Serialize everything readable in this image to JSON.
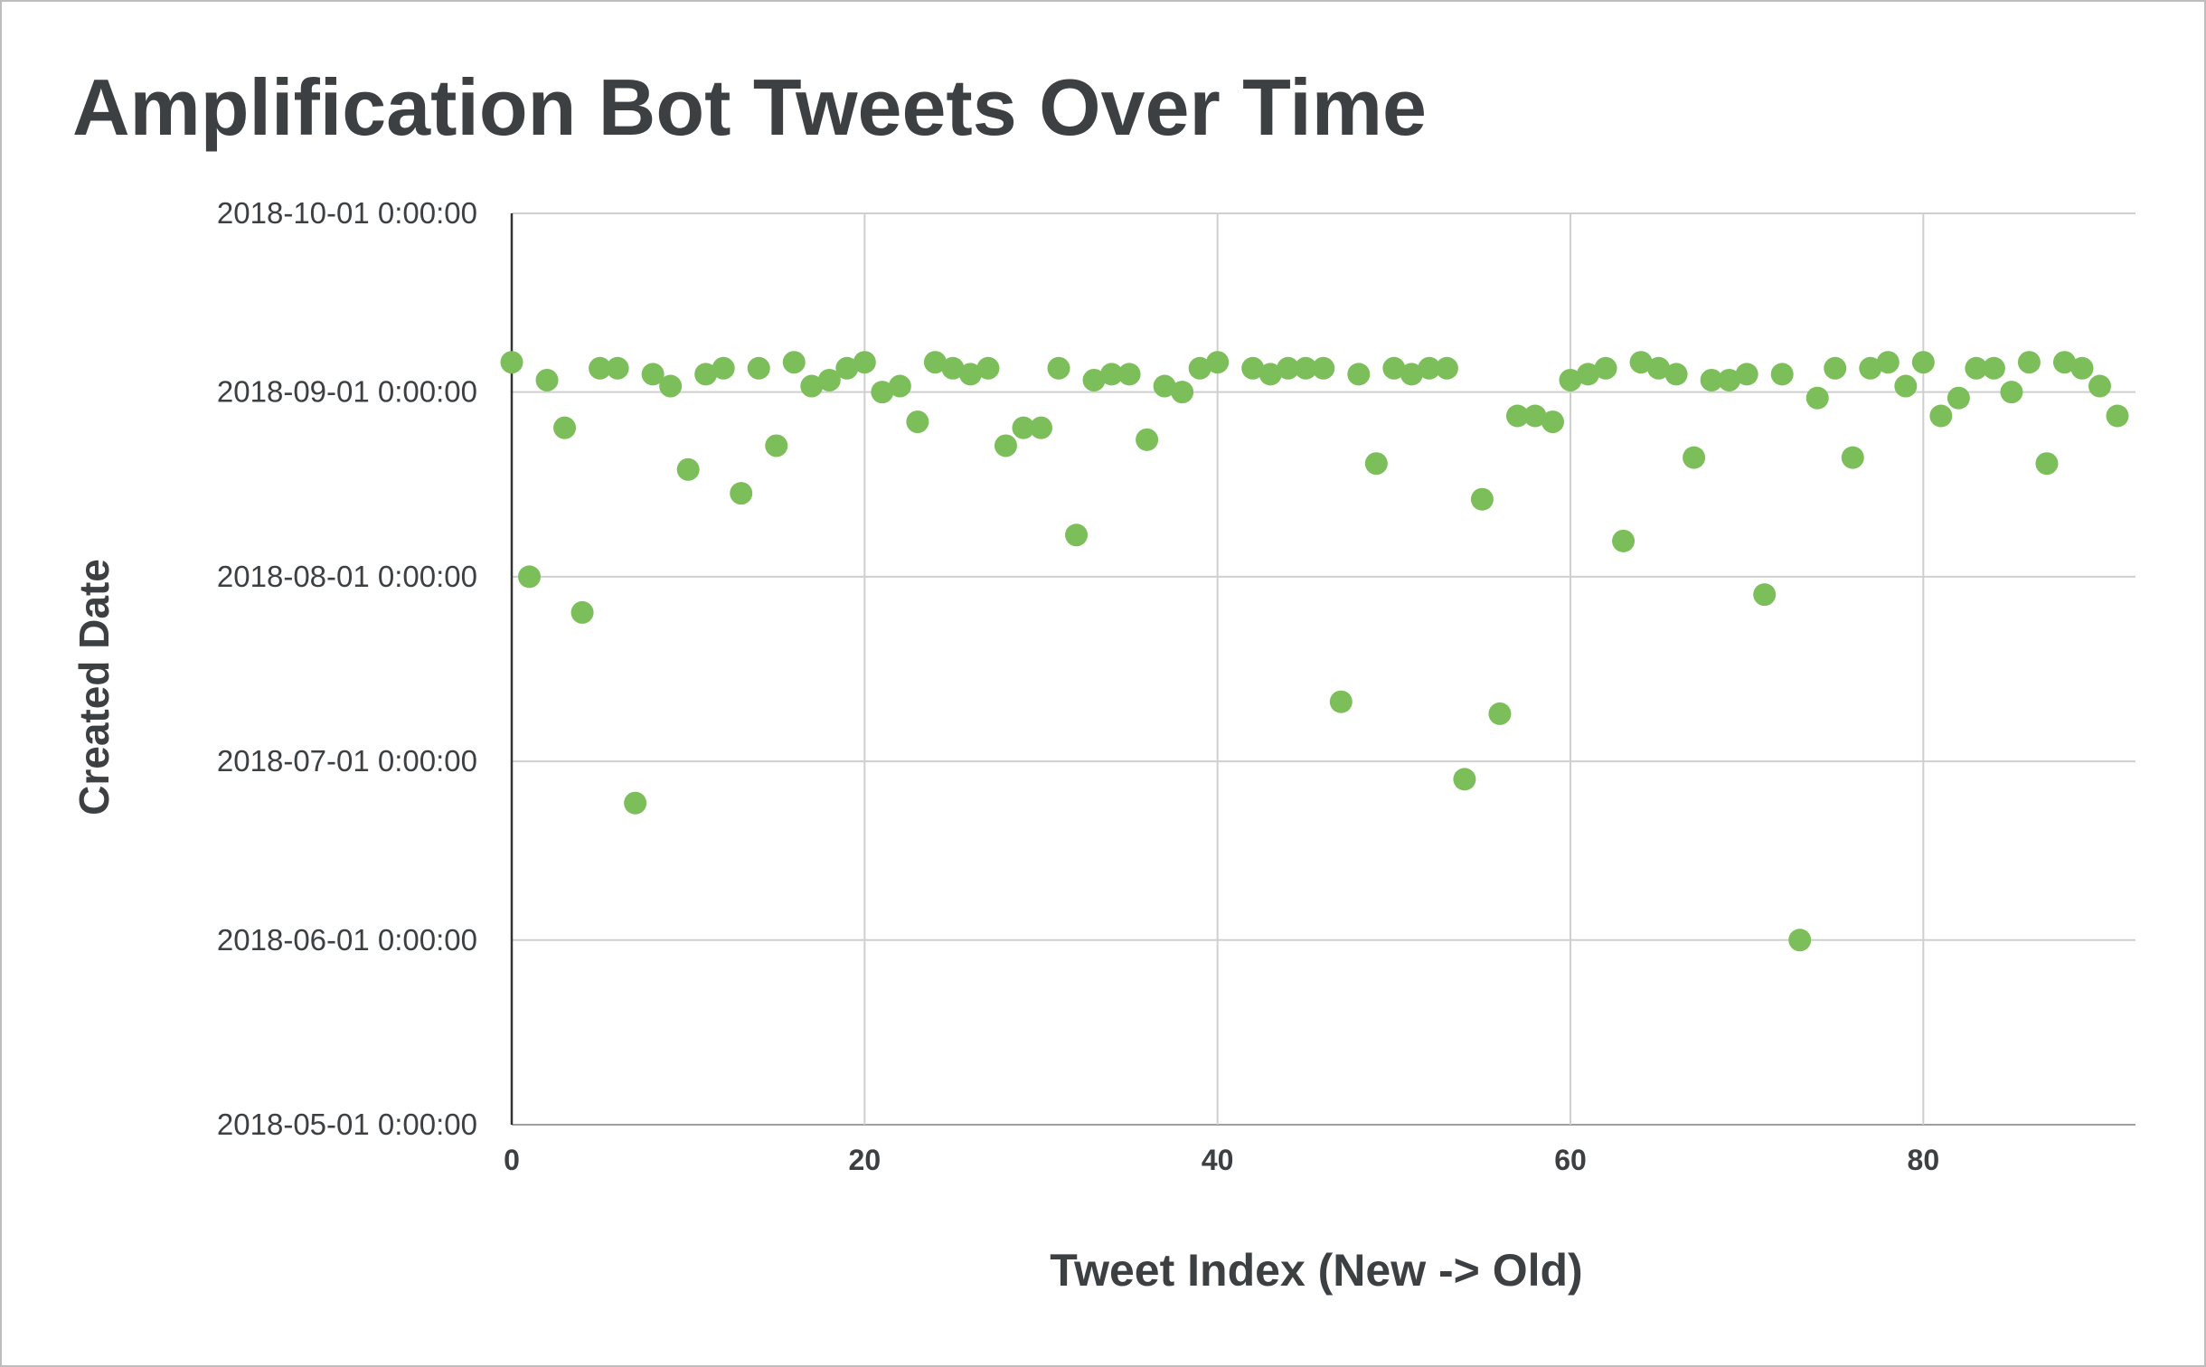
{
  "chart_data": {
    "type": "scatter",
    "title": "Amplification Bot Tweets Over Time",
    "xlabel": "Tweet Index (New -> Old)",
    "ylabel": "Created Date",
    "xlim": [
      0,
      92
    ],
    "ylim": [
      "2018-05-01 0:00:00",
      "2018-10-01 0:00:00"
    ],
    "x_ticks": [
      0,
      20,
      40,
      60,
      80
    ],
    "y_ticks": [
      "2018-05-01 0:00:00",
      "2018-06-01 0:00:00",
      "2018-07-01 0:00:00",
      "2018-08-01 0:00:00",
      "2018-09-01 0:00:00",
      "2018-10-01 0:00:00"
    ],
    "grid": true,
    "legend": "none",
    "color": "#7cbf5a",
    "series": [
      {
        "points": [
          [
            0,
            "2018-09-06"
          ],
          [
            1,
            "2018-08-01"
          ],
          [
            2,
            "2018-09-03"
          ],
          [
            3,
            "2018-08-26"
          ],
          [
            4,
            "2018-07-26"
          ],
          [
            5,
            "2018-09-05"
          ],
          [
            6,
            "2018-09-05"
          ],
          [
            7,
            "2018-06-24"
          ],
          [
            8,
            "2018-09-04"
          ],
          [
            9,
            "2018-09-02"
          ],
          [
            10,
            "2018-08-19"
          ],
          [
            11,
            "2018-09-04"
          ],
          [
            12,
            "2018-09-05"
          ],
          [
            13,
            "2018-08-15"
          ],
          [
            14,
            "2018-09-05"
          ],
          [
            15,
            "2018-08-23"
          ],
          [
            16,
            "2018-09-06"
          ],
          [
            17,
            "2018-09-02"
          ],
          [
            18,
            "2018-09-03"
          ],
          [
            19,
            "2018-09-05"
          ],
          [
            20,
            "2018-09-06"
          ],
          [
            21,
            "2018-09-01"
          ],
          [
            22,
            "2018-09-02"
          ],
          [
            23,
            "2018-08-27"
          ],
          [
            24,
            "2018-09-06"
          ],
          [
            25,
            "2018-09-05"
          ],
          [
            26,
            "2018-09-04"
          ],
          [
            27,
            "2018-09-05"
          ],
          [
            28,
            "2018-08-23"
          ],
          [
            29,
            "2018-08-26"
          ],
          [
            30,
            "2018-08-26"
          ],
          [
            31,
            "2018-09-05"
          ],
          [
            32,
            "2018-08-08"
          ],
          [
            33,
            "2018-09-03"
          ],
          [
            34,
            "2018-09-04"
          ],
          [
            35,
            "2018-09-04"
          ],
          [
            36,
            "2018-08-24"
          ],
          [
            37,
            "2018-09-02"
          ],
          [
            38,
            "2018-09-01"
          ],
          [
            39,
            "2018-09-05"
          ],
          [
            40,
            "2018-09-06"
          ],
          [
            42,
            "2018-09-05"
          ],
          [
            43,
            "2018-09-04"
          ],
          [
            44,
            "2018-09-05"
          ],
          [
            45,
            "2018-09-05"
          ],
          [
            46,
            "2018-09-05"
          ],
          [
            47,
            "2018-07-11"
          ],
          [
            48,
            "2018-09-04"
          ],
          [
            49,
            "2018-08-20"
          ],
          [
            50,
            "2018-09-05"
          ],
          [
            51,
            "2018-09-04"
          ],
          [
            52,
            "2018-09-05"
          ],
          [
            53,
            "2018-09-05"
          ],
          [
            54,
            "2018-06-28"
          ],
          [
            55,
            "2018-08-14"
          ],
          [
            56,
            "2018-07-09"
          ],
          [
            57,
            "2018-08-28"
          ],
          [
            58,
            "2018-08-28"
          ],
          [
            59,
            "2018-08-27"
          ],
          [
            60,
            "2018-09-03"
          ],
          [
            61,
            "2018-09-04"
          ],
          [
            62,
            "2018-09-05"
          ],
          [
            63,
            "2018-08-07"
          ],
          [
            64,
            "2018-09-06"
          ],
          [
            65,
            "2018-09-05"
          ],
          [
            66,
            "2018-09-04"
          ],
          [
            67,
            "2018-08-21"
          ],
          [
            68,
            "2018-09-03"
          ],
          [
            69,
            "2018-09-03"
          ],
          [
            70,
            "2018-09-04"
          ],
          [
            71,
            "2018-07-29"
          ],
          [
            72,
            "2018-09-04"
          ],
          [
            73,
            "2018-06-01"
          ],
          [
            74,
            "2018-08-31"
          ],
          [
            75,
            "2018-09-05"
          ],
          [
            76,
            "2018-08-21"
          ],
          [
            77,
            "2018-09-05"
          ],
          [
            78,
            "2018-09-06"
          ],
          [
            79,
            "2018-09-02"
          ],
          [
            80,
            "2018-09-06"
          ],
          [
            81,
            "2018-08-28"
          ],
          [
            82,
            "2018-08-31"
          ],
          [
            83,
            "2018-09-05"
          ],
          [
            84,
            "2018-09-05"
          ],
          [
            85,
            "2018-09-01"
          ],
          [
            86,
            "2018-09-06"
          ],
          [
            87,
            "2018-08-20"
          ],
          [
            88,
            "2018-09-06"
          ],
          [
            89,
            "2018-09-05"
          ],
          [
            90,
            "2018-09-02"
          ],
          [
            91,
            "2018-08-28"
          ]
        ]
      }
    ]
  }
}
